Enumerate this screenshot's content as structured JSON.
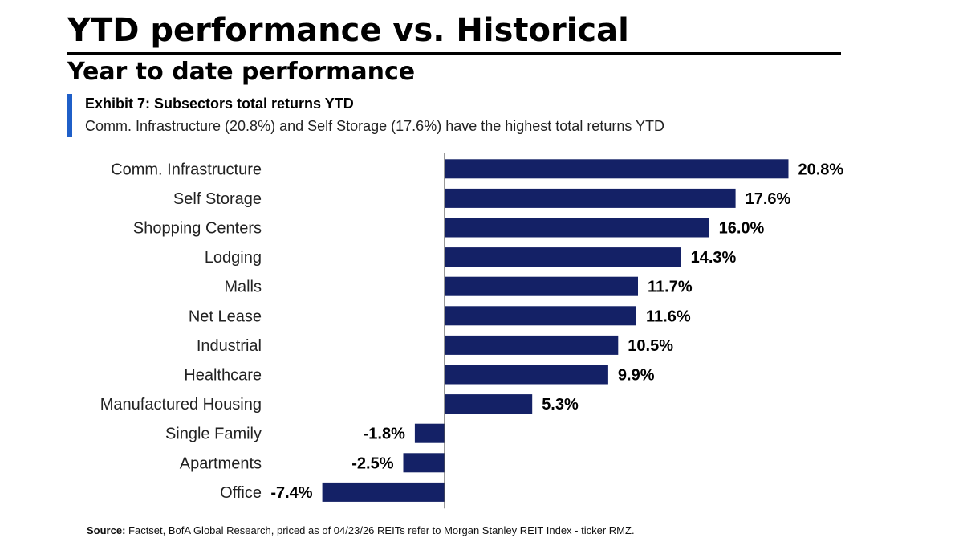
{
  "header": {
    "title": "YTD performance vs. Historical",
    "subtitle": "Year to date performance"
  },
  "exhibit": {
    "title": "Exhibit 7: Subsectors total returns YTD",
    "description": "Comm. Infrastructure (20.8%) and Self Storage (17.6%) have the highest total returns YTD"
  },
  "colors": {
    "bar": "#142166",
    "accent": "#1f5fc8"
  },
  "chart_data": {
    "type": "bar",
    "orientation": "horizontal",
    "title": "Exhibit 7: Subsectors total returns YTD",
    "xlabel": "",
    "ylabel": "",
    "unit": "%",
    "grid": false,
    "categories": [
      "Comm. Infrastructure",
      "Self Storage",
      "Shopping Centers",
      "Lodging",
      "Malls",
      "Net Lease",
      "Industrial",
      "Healthcare",
      "Manufactured Housing",
      "Single Family",
      "Apartments",
      "Office"
    ],
    "values": [
      20.8,
      17.6,
      16.0,
      14.3,
      11.7,
      11.6,
      10.5,
      9.9,
      5.3,
      -1.8,
      -2.5,
      -7.4
    ],
    "labels": [
      "20.8%",
      "17.6%",
      "16.0%",
      "14.3%",
      "11.7%",
      "11.6%",
      "10.5%",
      "9.9%",
      "5.3%",
      "-1.8%",
      "-2.5%",
      "-7.4%"
    ]
  },
  "footer": {
    "source_label": "Source:",
    "source_text": " Factset, BofA Global Research, priced as of 04/23/26 REITs refer to Morgan Stanley REIT Index - ticker RMZ."
  }
}
